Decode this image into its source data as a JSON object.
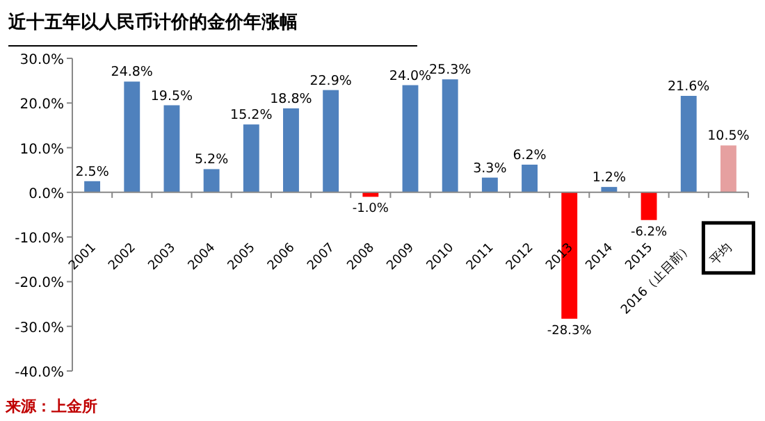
{
  "chart_data": {
    "type": "bar",
    "title": "近十五年以人民币计价的金价年涨幅",
    "categories": [
      "2001",
      "2002",
      "2003",
      "2004",
      "2005",
      "2006",
      "2007",
      "2008",
      "2009",
      "2010",
      "2011",
      "2012",
      "2013",
      "2014",
      "2015",
      "2016（止目前）",
      "平均"
    ],
    "values": [
      2.5,
      24.8,
      19.5,
      5.2,
      15.2,
      18.8,
      22.9,
      -1.0,
      24.0,
      25.3,
      3.3,
      6.2,
      -28.3,
      1.2,
      -6.2,
      21.6,
      10.5
    ],
    "colors": [
      "#4f81bd",
      "#4f81bd",
      "#4f81bd",
      "#4f81bd",
      "#4f81bd",
      "#4f81bd",
      "#4f81bd",
      "#ff0000",
      "#4f81bd",
      "#4f81bd",
      "#4f81bd",
      "#4f81bd",
      "#ff0000",
      "#4f81bd",
      "#ff0000",
      "#4f81bd",
      "#e6a0a0"
    ],
    "value_labels": [
      "2.5%",
      "24.8%",
      "19.5%",
      "5.2%",
      "15.2%",
      "18.8%",
      "22.9%",
      "-1.0%",
      "24.0%",
      "25.3%",
      "3.3%",
      "6.2%",
      "-28.3%",
      "1.2%",
      "-6.2%",
      "21.6%",
      "10.5%"
    ],
    "ylim": [
      -40,
      30
    ],
    "yticks": [
      {
        "value": -40,
        "label": "-40.0%"
      },
      {
        "value": -30,
        "label": "-30.0%"
      },
      {
        "value": -20,
        "label": "-20.0%"
      },
      {
        "value": -10,
        "label": "-10.0%"
      },
      {
        "value": 0,
        "label": "0.0%"
      },
      {
        "value": 10,
        "label": "10.0%"
      },
      {
        "value": 20,
        "label": "20.0%"
      },
      {
        "value": 30,
        "label": "30.0%"
      }
    ],
    "annotations": [
      "来源：上金所"
    ]
  }
}
